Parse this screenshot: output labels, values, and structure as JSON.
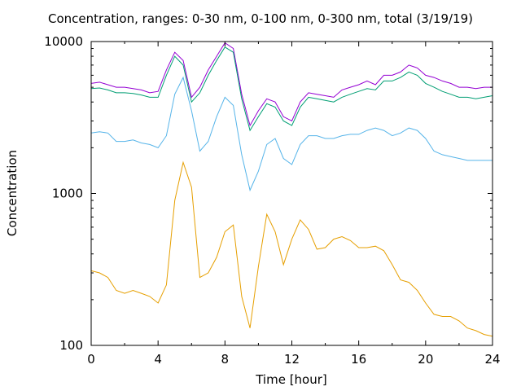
{
  "chart_data": {
    "type": "line",
    "title": "Concentration, ranges: 0-30 nm, 0-100 nm, 0-300 nm, total (3/19/19)",
    "xlabel": "Time [hour]",
    "ylabel": "Concentration",
    "xlim": [
      0,
      24
    ],
    "ylim": [
      100,
      10000
    ],
    "yscale": "log",
    "xticks": [
      "0",
      "4",
      "8",
      "12",
      "16",
      "20",
      "24"
    ],
    "yticks": [
      "100",
      "1000",
      "10000"
    ],
    "grid": false,
    "legend": "none",
    "series": [
      {
        "color": "#9400d3",
        "x": [
          0,
          0.5,
          1,
          1.5,
          2,
          2.5,
          3,
          3.5,
          4,
          4.5,
          5,
          5.5,
          6,
          6.5,
          7,
          7.5,
          8,
          8.5,
          9,
          9.5,
          10,
          10.5,
          11,
          11.5,
          12,
          12.5,
          13,
          13.5,
          14,
          14.5,
          15,
          15.5,
          16,
          16.5,
          17,
          17.5,
          18,
          18.5,
          19,
          19.5,
          20,
          20.5,
          21,
          21.5,
          22,
          22.5,
          23,
          23.5,
          24
        ],
        "y": [
          5300,
          5400,
          5200,
          5000,
          5000,
          4900,
          4800,
          4600,
          4700,
          6500,
          8500,
          7500,
          4300,
          5000,
          6500,
          8000,
          9800,
          9000,
          4500,
          2800,
          3500,
          4200,
          4000,
          3200,
          3000,
          4000,
          4600,
          4500,
          4400,
          4300,
          4800,
          5000,
          5200,
          5500,
          5200,
          6000,
          6000,
          6300,
          7000,
          6700,
          6000,
          5800,
          5500,
          5300,
          5000,
          5000,
          4900,
          5000,
          5000
        ]
      },
      {
        "color": "#009e73",
        "x": [
          0,
          0.5,
          1,
          1.5,
          2,
          2.5,
          3,
          3.5,
          4,
          4.5,
          5,
          5.5,
          6,
          6.5,
          7,
          7.5,
          8,
          8.5,
          9,
          9.5,
          10,
          10.5,
          11,
          11.5,
          12,
          12.5,
          13,
          13.5,
          14,
          14.5,
          15,
          15.5,
          16,
          16.5,
          17,
          17.5,
          18,
          18.5,
          19,
          19.5,
          20,
          20.5,
          21,
          21.5,
          22,
          22.5,
          23,
          23.5,
          24
        ],
        "y": [
          4900,
          4950,
          4800,
          4600,
          4600,
          4550,
          4450,
          4300,
          4300,
          6000,
          8000,
          7000,
          4000,
          4600,
          6000,
          7500,
          9200,
          8500,
          4200,
          2600,
          3200,
          3900,
          3700,
          3000,
          2800,
          3700,
          4300,
          4200,
          4100,
          4000,
          4300,
          4500,
          4700,
          4900,
          4800,
          5500,
          5500,
          5800,
          6300,
          6000,
          5300,
          5000,
          4700,
          4500,
          4300,
          4300,
          4200,
          4300,
          4400
        ]
      },
      {
        "color": "#56b4e9",
        "x": [
          0,
          0.5,
          1,
          1.5,
          2,
          2.5,
          3,
          3.5,
          4,
          4.5,
          5,
          5.5,
          6,
          6.5,
          7,
          7.5,
          8,
          8.5,
          9,
          9.5,
          10,
          10.5,
          11,
          11.5,
          12,
          12.5,
          13,
          13.5,
          14,
          14.5,
          15,
          15.5,
          16,
          16.5,
          17,
          17.5,
          18,
          18.5,
          19,
          19.5,
          20,
          20.5,
          21,
          21.5,
          22,
          22.5,
          23,
          23.5,
          24
        ],
        "y": [
          2500,
          2550,
          2500,
          2200,
          2200,
          2250,
          2150,
          2100,
          2000,
          2400,
          4500,
          5800,
          3500,
          1900,
          2200,
          3200,
          4300,
          3800,
          1800,
          1050,
          1400,
          2100,
          2300,
          1700,
          1550,
          2100,
          2400,
          2400,
          2300,
          2300,
          2400,
          2450,
          2450,
          2600,
          2700,
          2600,
          2400,
          2500,
          2700,
          2600,
          2300,
          1900,
          1800,
          1750,
          1700,
          1650,
          1650,
          1650,
          1650
        ]
      },
      {
        "color": "#e69f00",
        "x": [
          0,
          0.5,
          1,
          1.5,
          2,
          2.5,
          3,
          3.5,
          4,
          4.5,
          5,
          5.5,
          6,
          6.5,
          7,
          7.5,
          8,
          8.5,
          9,
          9.5,
          10,
          10.5,
          11,
          11.5,
          12,
          12.5,
          13,
          13.5,
          14,
          14.5,
          15,
          15.5,
          16,
          16.5,
          17,
          17.5,
          18,
          18.5,
          19,
          19.5,
          20,
          20.5,
          21,
          21.5,
          22,
          22.5,
          23,
          23.5,
          24
        ],
        "y": [
          310,
          300,
          280,
          230,
          220,
          230,
          220,
          210,
          190,
          250,
          900,
          1600,
          1100,
          280,
          300,
          380,
          560,
          620,
          210,
          130,
          330,
          730,
          560,
          340,
          500,
          670,
          580,
          430,
          440,
          500,
          520,
          490,
          440,
          440,
          450,
          420,
          340,
          270,
          260,
          230,
          190,
          160,
          155,
          155,
          145,
          130,
          125,
          118,
          115
        ]
      }
    ]
  }
}
